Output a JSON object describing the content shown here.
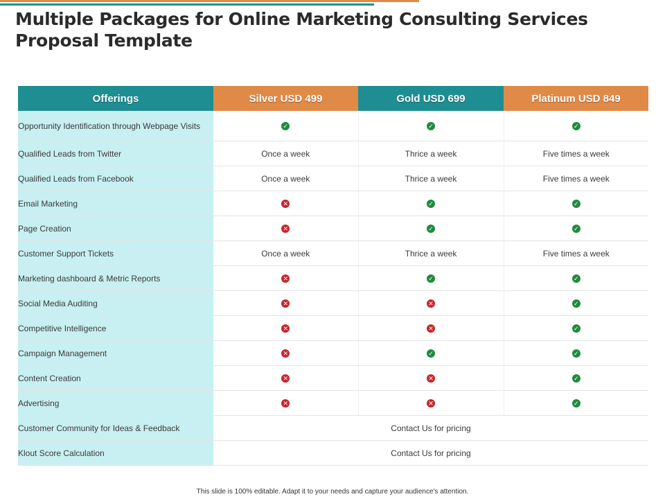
{
  "slide": {
    "title": "Multiple Packages for Online Marketing Consulting Services Proposal Template",
    "footer": "This slide is 100% editable. Adapt it to your needs and capture your audience's attention.",
    "colors": {
      "orange": "#E08A48",
      "teal": "#1E8E92",
      "label_bg": "#C8EFF1",
      "check": "#1F8B3E",
      "cross": "#C8252C"
    }
  },
  "table": {
    "headers": [
      "Offerings",
      "Silver USD 499",
      "Gold USD 699",
      "Platinum USD 849"
    ],
    "rows": [
      {
        "label": "Opportunity Identification through Webpage Visits",
        "cells": [
          "check",
          "check",
          "check"
        ]
      },
      {
        "label": "Qualified Leads from Twitter",
        "cells": [
          "Once a week",
          "Thrice a week",
          "Five times a week"
        ]
      },
      {
        "label": "Qualified Leads from Facebook",
        "cells": [
          "Once a week",
          "Thrice a week",
          "Five times a week"
        ]
      },
      {
        "label": "Email Marketing",
        "cells": [
          "cross",
          "check",
          "check"
        ]
      },
      {
        "label": "Page Creation",
        "cells": [
          "cross",
          "check",
          "check"
        ]
      },
      {
        "label": "Customer Support Tickets",
        "cells": [
          "Once a week",
          "Thrice a week",
          "Five times a week"
        ]
      },
      {
        "label": "Marketing dashboard & Metric Reports",
        "cells": [
          "cross",
          "check",
          "check"
        ]
      },
      {
        "label": "Social Media Auditing",
        "cells": [
          "cross",
          "cross",
          "check"
        ]
      },
      {
        "label": "Competitive Intelligence",
        "cells": [
          "cross",
          "cross",
          "check"
        ]
      },
      {
        "label": "Campaign Management",
        "cells": [
          "cross",
          "check",
          "check"
        ]
      },
      {
        "label": "Content Creation",
        "cells": [
          "cross",
          "cross",
          "check"
        ]
      },
      {
        "label": "Advertising",
        "cells": [
          "cross",
          "cross",
          "check"
        ]
      },
      {
        "label": "Customer Community for Ideas & Feedback",
        "merged": "Contact Us for pricing"
      },
      {
        "label": "Klout Score Calculation",
        "merged": "Contact Us for pricing"
      }
    ]
  }
}
